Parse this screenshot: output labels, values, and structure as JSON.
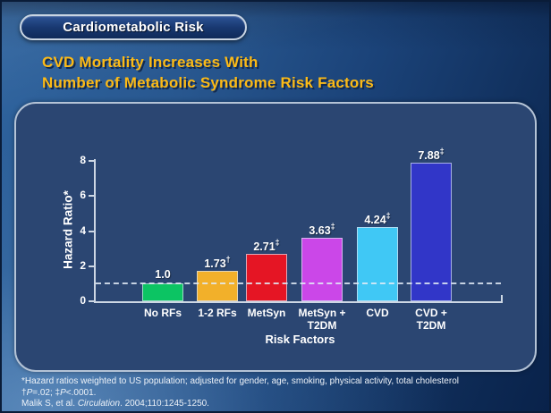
{
  "banner": {
    "label": "Cardiometabolic Risk"
  },
  "title": {
    "line1": "CVD Mortality Increases With",
    "line2": "Number of Metabolic Syndrome Risk Factors"
  },
  "chart_data": {
    "type": "bar",
    "categories": [
      "No RFs",
      "1-2 RFs",
      "MetSyn",
      "MetSyn +\nT2DM",
      "CVD",
      "CVD +\nT2DM"
    ],
    "values": [
      1.0,
      1.73,
      2.71,
      3.63,
      4.24,
      7.88
    ],
    "value_labels": [
      "1.0",
      "1.73",
      "2.71",
      "3.63",
      "4.24",
      "7.88"
    ],
    "value_superscripts": [
      "",
      "†",
      "‡",
      "‡",
      "‡",
      "‡"
    ],
    "bar_colors": [
      "#0cc463",
      "#f2b02a",
      "#e51524",
      "#cb47e8",
      "#40c8f5",
      "#3136c8"
    ],
    "xlabel": "Risk Factors",
    "ylabel": "Hazard Ratio*",
    "yticks": [
      0,
      2,
      4,
      6,
      8
    ],
    "ylim": [
      0,
      8
    ],
    "reference_line": 1.0,
    "grid": false,
    "legend": false,
    "axis_color": "#cdd7e4",
    "plot_background": "#2b4672"
  },
  "footnotes": [
    [
      {
        "text": "*Hazard ratios weighted to US population; adjusted for gender, age, smoking, physical activity, total cholesterol"
      }
    ],
    [
      {
        "text": "†"
      },
      {
        "text": "P",
        "italic": true
      },
      {
        "text": "=.02; ‡"
      },
      {
        "text": "P",
        "italic": true
      },
      {
        "text": "<.0001."
      }
    ],
    [
      {
        "text": "Malik S, et al. "
      },
      {
        "text": "Circulation",
        "italic": true
      },
      {
        "text": ". 2004;110:1245-1250."
      }
    ]
  ],
  "colors": {
    "background_top": "#09224a",
    "background_bottom_left": "#4a80b4",
    "panel_fill": "#2b4672",
    "panel_border": "#b4c3d6",
    "title_text": "#fcba16",
    "banner_fill": "#183870",
    "banner_border": "#c9d5e3",
    "text_primary": "#ffffff"
  }
}
